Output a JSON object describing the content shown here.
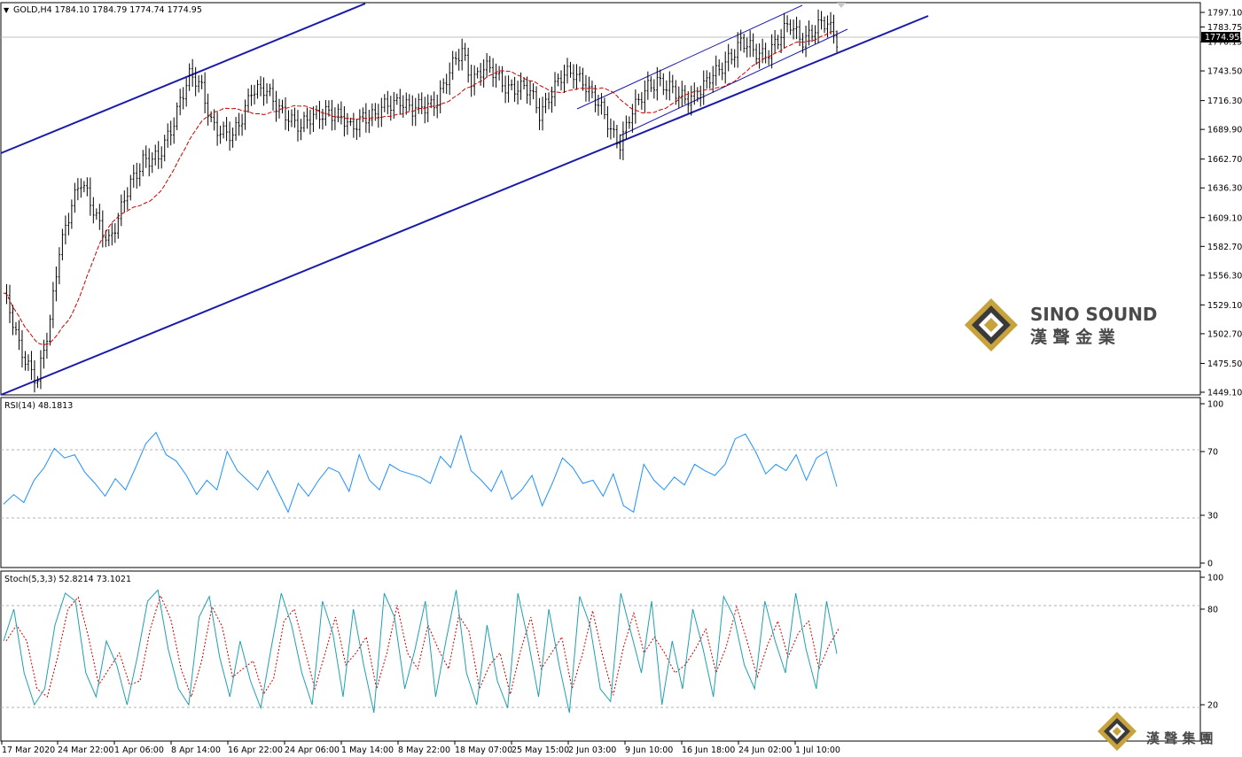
{
  "colors": {
    "background": "#ffffff",
    "candle": "#000000",
    "ma": "#cc0000",
    "channel": "#1a1aaa",
    "rsi": "#1e90ff",
    "stoch_main": "#20a0b0",
    "stoch_signal": "#cc0000",
    "price_tag_bg": "#000000",
    "logo_gold": "#c8a23c",
    "logo_dark": "#3a3a3a"
  },
  "chart_data": [
    {
      "type": "candlestick",
      "title": "GOLD,H4  1784.10 1784.79 1774.74 1774.95",
      "symbol": "GOLD,H4",
      "ohlc_last": {
        "open": 1784.1,
        "high": 1784.79,
        "low": 1774.74,
        "close": 1774.95
      },
      "last_price": "1774.95",
      "ylim": [
        1449.1,
        1797.1
      ],
      "y_ticks": [
        "1797.10",
        "1783.75",
        "1770.15",
        "1743.50",
        "1716.30",
        "1689.90",
        "1662.70",
        "1636.30",
        "1609.10",
        "1582.70",
        "1556.30",
        "1529.10",
        "1502.70",
        "1475.50",
        "1449.10"
      ],
      "x_ticks": [
        "17 Mar 2020",
        "24 Mar 22:00",
        "1 Apr 06:00",
        "8 Apr 14:00",
        "16 Apr 22:00",
        "24 Apr 06:00",
        "1 May 14:00",
        "8 May 22:00",
        "18 May 07:00",
        "25 May 15:00",
        "2 Jun 03:00",
        "9 Jun 10:00",
        "16 Jun 18:00",
        "24 Jun 02:00",
        "1 Jul 10:00"
      ],
      "close_path": [
        {
          "bar": 0,
          "price": 1540
        },
        {
          "bar": 5,
          "price": 1490
        },
        {
          "bar": 11,
          "price": 1462
        },
        {
          "bar": 15,
          "price": 1510
        },
        {
          "bar": 18,
          "price": 1580
        },
        {
          "bar": 22,
          "price": 1625
        },
        {
          "bar": 25,
          "price": 1640
        },
        {
          "bar": 28,
          "price": 1620
        },
        {
          "bar": 32,
          "price": 1600
        },
        {
          "bar": 34,
          "price": 1590
        },
        {
          "bar": 37,
          "price": 1605
        },
        {
          "bar": 41,
          "price": 1640
        },
        {
          "bar": 45,
          "price": 1665
        },
        {
          "bar": 50,
          "price": 1660
        },
        {
          "bar": 54,
          "price": 1690
        },
        {
          "bar": 57,
          "price": 1720
        },
        {
          "bar": 60,
          "price": 1738
        },
        {
          "bar": 64,
          "price": 1725
        },
        {
          "bar": 67,
          "price": 1700
        },
        {
          "bar": 70,
          "price": 1690
        },
        {
          "bar": 74,
          "price": 1680
        },
        {
          "bar": 77,
          "price": 1700
        },
        {
          "bar": 80,
          "price": 1730
        },
        {
          "bar": 84,
          "price": 1725
        },
        {
          "bar": 88,
          "price": 1710
        },
        {
          "bar": 92,
          "price": 1705
        },
        {
          "bar": 96,
          "price": 1690
        },
        {
          "bar": 100,
          "price": 1700
        },
        {
          "bar": 104,
          "price": 1710
        },
        {
          "bar": 108,
          "price": 1700
        },
        {
          "bar": 112,
          "price": 1690
        },
        {
          "bar": 116,
          "price": 1705
        },
        {
          "bar": 120,
          "price": 1700
        },
        {
          "bar": 124,
          "price": 1712
        },
        {
          "bar": 128,
          "price": 1720
        },
        {
          "bar": 132,
          "price": 1705
        },
        {
          "bar": 136,
          "price": 1710
        },
        {
          "bar": 140,
          "price": 1720
        },
        {
          "bar": 144,
          "price": 1740
        },
        {
          "bar": 148,
          "price": 1762
        },
        {
          "bar": 151,
          "price": 1738
        },
        {
          "bar": 155,
          "price": 1745
        },
        {
          "bar": 158,
          "price": 1740
        },
        {
          "bar": 162,
          "price": 1732
        },
        {
          "bar": 166,
          "price": 1728
        },
        {
          "bar": 170,
          "price": 1722
        },
        {
          "bar": 173,
          "price": 1706
        },
        {
          "bar": 176,
          "price": 1722
        },
        {
          "bar": 180,
          "price": 1735
        },
        {
          "bar": 184,
          "price": 1742
        },
        {
          "bar": 187,
          "price": 1738
        },
        {
          "bar": 190,
          "price": 1720
        },
        {
          "bar": 193,
          "price": 1705
        },
        {
          "bar": 196,
          "price": 1690
        },
        {
          "bar": 199,
          "price": 1680
        },
        {
          "bar": 202,
          "price": 1700
        },
        {
          "bar": 205,
          "price": 1712
        },
        {
          "bar": 208,
          "price": 1730
        },
        {
          "bar": 211,
          "price": 1738
        },
        {
          "bar": 214,
          "price": 1728
        },
        {
          "bar": 218,
          "price": 1718
        },
        {
          "bar": 222,
          "price": 1722
        },
        {
          "bar": 226,
          "price": 1728
        },
        {
          "bar": 230,
          "price": 1740
        },
        {
          "bar": 234,
          "price": 1758
        },
        {
          "bar": 238,
          "price": 1768
        },
        {
          "bar": 242,
          "price": 1760
        },
        {
          "bar": 246,
          "price": 1762
        },
        {
          "bar": 250,
          "price": 1770
        },
        {
          "bar": 254,
          "price": 1785
        },
        {
          "bar": 258,
          "price": 1775
        },
        {
          "bar": 262,
          "price": 1780
        },
        {
          "bar": 266,
          "price": 1786
        },
        {
          "bar": 269,
          "price": 1775
        }
      ],
      "overlays": {
        "moving_average": "red dashed",
        "channel_lines": "blue trend channels"
      }
    },
    {
      "type": "line",
      "title": "RSI(14) 48.1813",
      "name": "RSI(14)",
      "value": 48.1813,
      "ylim": [
        0,
        100
      ],
      "y_ticks": [
        "100",
        "70",
        "30",
        "0"
      ],
      "levels": [
        70,
        30
      ],
      "values_sampled": [
        37,
        43,
        38,
        52,
        60,
        72,
        66,
        68,
        57,
        50,
        42,
        53,
        46,
        60,
        75,
        82,
        68,
        64,
        55,
        43,
        52,
        46,
        70,
        58,
        52,
        46,
        58,
        45,
        32,
        50,
        42,
        52,
        60,
        57,
        45,
        68,
        52,
        46,
        62,
        58,
        56,
        54,
        50,
        67,
        60,
        80,
        58,
        52,
        45,
        58,
        40,
        46,
        55,
        36,
        50,
        66,
        60,
        50,
        52,
        42,
        56,
        36,
        32,
        62,
        52,
        46,
        54,
        49,
        62,
        58,
        55,
        62,
        78,
        81,
        70,
        56,
        62,
        58,
        68,
        52,
        66,
        70,
        48
      ]
    },
    {
      "type": "line",
      "title": "Stoch(5,3,3) 52.8214 73.1021",
      "name": "Stoch(5,3,3)",
      "main_value": 52.8214,
      "signal_value": 73.1021,
      "ylim": [
        0,
        100
      ],
      "y_ticks": [
        "100",
        "80",
        "20"
      ],
      "levels": [
        80,
        20
      ],
      "values_sampled": [
        60,
        80,
        40,
        20,
        30,
        70,
        90,
        85,
        40,
        25,
        60,
        45,
        20,
        50,
        85,
        92,
        55,
        30,
        20,
        75,
        88,
        50,
        25,
        60,
        35,
        18,
        55,
        90,
        70,
        40,
        20,
        85,
        65,
        25,
        80,
        45,
        15,
        90,
        75,
        30,
        55,
        85,
        25,
        60,
        92,
        40,
        20,
        70,
        35,
        18,
        90,
        60,
        25,
        80,
        45,
        15,
        88,
        70,
        30,
        22,
        90,
        65,
        40,
        85,
        20,
        60,
        30,
        80,
        55,
        25,
        88,
        75,
        45,
        30,
        85,
        60,
        40,
        90,
        55,
        30,
        85,
        52
      ]
    }
  ],
  "logos": {
    "brand_main": "SINO SOUND",
    "brand_main_cn": "漢 聲 金 業",
    "brand_corner_cn": "漢 聲 集 團"
  }
}
